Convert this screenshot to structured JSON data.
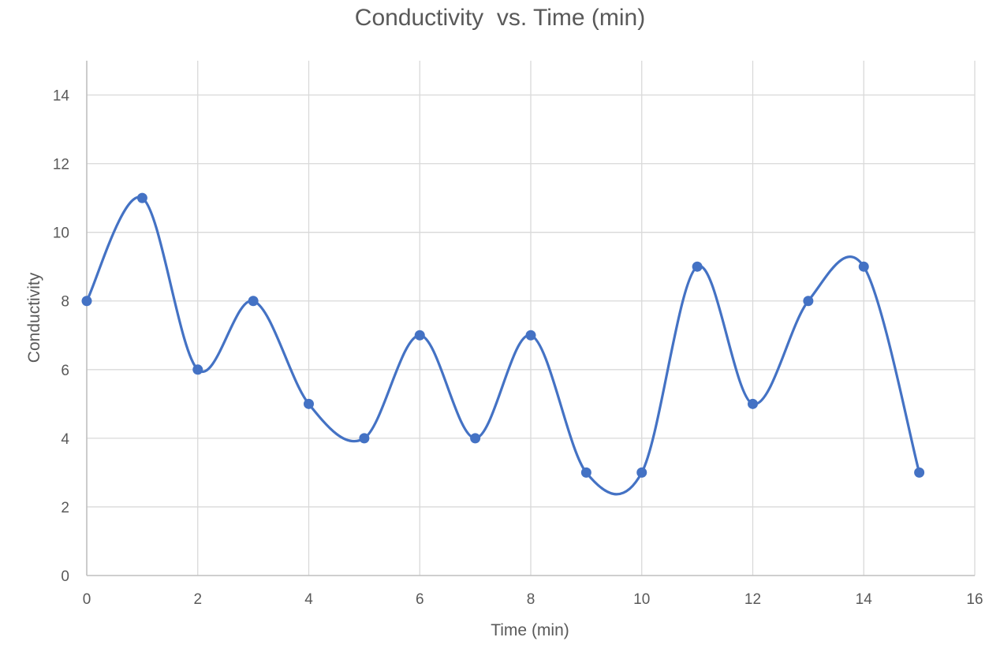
{
  "chart_data": {
    "type": "scatter",
    "title": "Conductivity  vs. Time (min)",
    "xlabel": "Time (min)",
    "ylabel": "Conductivity",
    "xlim": [
      0,
      16
    ],
    "ylim": [
      0,
      15
    ],
    "xticks": [
      0,
      2,
      4,
      6,
      8,
      10,
      12,
      14,
      16
    ],
    "yticks": [
      0,
      2,
      4,
      6,
      8,
      10,
      12,
      14
    ],
    "grid": true,
    "smooth_line": true,
    "series": [
      {
        "name": "Conductivity",
        "color": "#4472c4",
        "x": [
          0,
          1,
          2,
          3,
          4,
          5,
          6,
          7,
          8,
          9,
          10,
          11,
          12,
          13,
          14,
          15
        ],
        "y": [
          8,
          11,
          6,
          8,
          5,
          4,
          7,
          4,
          7,
          3,
          3,
          9,
          5,
          8,
          9,
          3
        ]
      }
    ]
  }
}
